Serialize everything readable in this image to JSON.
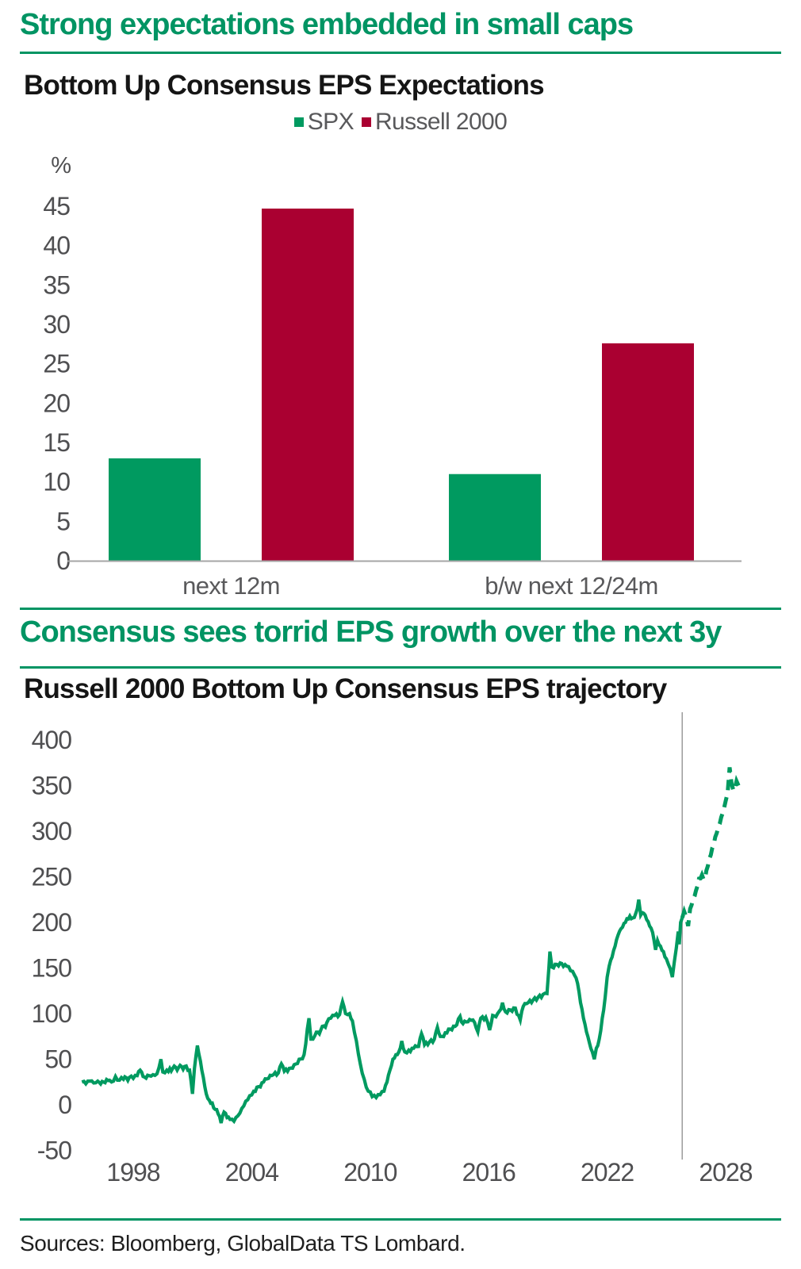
{
  "page": {
    "section1": {
      "headline": "Strong expectations embedded in small caps",
      "chart_title": "Bottom Up Consensus EPS Expectations"
    },
    "section2": {
      "headline": "Consensus sees torrid EPS growth over the next 3y",
      "chart_title": "Russell 2000 Bottom Up Consensus EPS trajectory"
    },
    "footer": {
      "sources": "Sources: Bloomberg, GlobalData TS Lombard."
    }
  },
  "colors": {
    "accent_green": "#009463",
    "series_green": "#009a60",
    "series_crimson": "#aa0031",
    "tick_gray": "#4f4f51",
    "label_gray": "#59595b",
    "axis_gray": "#a6a6a6",
    "vline_gray": "#9b9b9b"
  },
  "chart_data": [
    {
      "type": "bar",
      "title": "Bottom Up Consensus EPS Expectations",
      "unit": "%",
      "categories": [
        "next 12m",
        "b/w next 12/24m"
      ],
      "series": [
        {
          "name": "SPX",
          "color": "#009a60",
          "values": [
            13,
            11
          ]
        },
        {
          "name": "Russell 2000",
          "color": "#aa0031",
          "values": [
            44.7,
            27.6
          ]
        }
      ],
      "ylim": [
        0,
        45
      ],
      "ytick_step": 5,
      "grid": false,
      "legend_position": "top"
    },
    {
      "type": "line",
      "title": "Russell 2000 Bottom Up Consensus EPS trajectory",
      "xlim": [
        1995.3,
        2028.9
      ],
      "ylim": [
        -50,
        400
      ],
      "xticks": [
        1998,
        2004,
        2010,
        2016,
        2022,
        2028
      ],
      "ytick_step": 50,
      "grid": false,
      "annotations": [
        {
          "type": "vline",
          "x": 2025.8,
          "meaning": "forecast-start"
        }
      ],
      "series": [
        {
          "name": "Russell 2000 bottom-up consensus EPS",
          "color": "#009a60",
          "solid_until_x": 2025.8,
          "points": [
            [
              1995.4,
              25
            ],
            [
              1995.6,
              23
            ],
            [
              1995.8,
              26
            ],
            [
              1996.0,
              24
            ],
            [
              1996.2,
              26
            ],
            [
              1996.5,
              25
            ],
            [
              1996.8,
              27
            ],
            [
              1997.0,
              26
            ],
            [
              1997.1,
              31
            ],
            [
              1997.3,
              27
            ],
            [
              1997.5,
              28
            ],
            [
              1997.8,
              30
            ],
            [
              1998.0,
              29
            ],
            [
              1998.2,
              32
            ],
            [
              1998.35,
              38
            ],
            [
              1998.5,
              31
            ],
            [
              1998.8,
              32
            ],
            [
              1999.0,
              33
            ],
            [
              1999.2,
              34
            ],
            [
              1999.4,
              50
            ],
            [
              1999.5,
              36
            ],
            [
              1999.7,
              38
            ],
            [
              2000.0,
              40
            ],
            [
              2000.3,
              41
            ],
            [
              2000.6,
              42
            ],
            [
              2000.85,
              38
            ],
            [
              2001.0,
              12
            ],
            [
              2001.1,
              40
            ],
            [
              2001.25,
              65
            ],
            [
              2001.4,
              48
            ],
            [
              2001.55,
              30
            ],
            [
              2001.7,
              12
            ],
            [
              2001.85,
              5
            ],
            [
              2002.0,
              2
            ],
            [
              2002.15,
              -5
            ],
            [
              2002.3,
              -10
            ],
            [
              2002.45,
              -20
            ],
            [
              2002.6,
              -8
            ],
            [
              2002.75,
              -14
            ],
            [
              2002.9,
              -16
            ],
            [
              2003.1,
              -18
            ],
            [
              2003.3,
              -12
            ],
            [
              2003.5,
              -4
            ],
            [
              2003.7,
              4
            ],
            [
              2003.9,
              10
            ],
            [
              2004.1,
              15
            ],
            [
              2004.35,
              20
            ],
            [
              2004.6,
              25
            ],
            [
              2004.85,
              29
            ],
            [
              2005.1,
              33
            ],
            [
              2005.35,
              35
            ],
            [
              2005.5,
              45
            ],
            [
              2005.65,
              37
            ],
            [
              2005.9,
              40
            ],
            [
              2006.15,
              44
            ],
            [
              2006.4,
              50
            ],
            [
              2006.65,
              55
            ],
            [
              2006.9,
              95
            ],
            [
              2007.0,
              72
            ],
            [
              2007.2,
              76
            ],
            [
              2007.5,
              82
            ],
            [
              2007.8,
              90
            ],
            [
              2008.0,
              95
            ],
            [
              2008.2,
              98
            ],
            [
              2008.45,
              99
            ],
            [
              2008.6,
              113
            ],
            [
              2008.75,
              100
            ],
            [
              2008.95,
              100
            ],
            [
              2009.1,
              92
            ],
            [
              2009.3,
              70
            ],
            [
              2009.5,
              45
            ],
            [
              2009.7,
              28
            ],
            [
              2009.9,
              15
            ],
            [
              2010.1,
              9
            ],
            [
              2010.3,
              8
            ],
            [
              2010.5,
              11
            ],
            [
              2010.7,
              15
            ],
            [
              2010.85,
              25
            ],
            [
              2011.0,
              38
            ],
            [
              2011.15,
              50
            ],
            [
              2011.3,
              55
            ],
            [
              2011.45,
              58
            ],
            [
              2011.6,
              70
            ],
            [
              2011.75,
              58
            ],
            [
              2011.95,
              60
            ],
            [
              2012.2,
              62
            ],
            [
              2012.45,
              64
            ],
            [
              2012.6,
              78
            ],
            [
              2012.75,
              66
            ],
            [
              2013.0,
              69
            ],
            [
              2013.25,
              72
            ],
            [
              2013.4,
              85
            ],
            [
              2013.55,
              75
            ],
            [
              2013.8,
              79
            ],
            [
              2014.05,
              83
            ],
            [
              2014.3,
              86
            ],
            [
              2014.55,
              97
            ],
            [
              2014.7,
              89
            ],
            [
              2014.95,
              91
            ],
            [
              2015.2,
              93
            ],
            [
              2015.45,
              80
            ],
            [
              2015.6,
              95
            ],
            [
              2015.85,
              96
            ],
            [
              2016.05,
              82
            ],
            [
              2016.2,
              98
            ],
            [
              2016.45,
              100
            ],
            [
              2016.7,
              112
            ],
            [
              2016.85,
              102
            ],
            [
              2017.1,
              104
            ],
            [
              2017.35,
              106
            ],
            [
              2017.6,
              93
            ],
            [
              2017.75,
              108
            ],
            [
              2018.0,
              112
            ],
            [
              2018.25,
              115
            ],
            [
              2018.5,
              118
            ],
            [
              2018.75,
              121
            ],
            [
              2018.95,
              122
            ],
            [
              2019.05,
              150
            ],
            [
              2019.1,
              168
            ],
            [
              2019.2,
              151
            ],
            [
              2019.45,
              154
            ],
            [
              2019.7,
              155
            ],
            [
              2019.95,
              152
            ],
            [
              2020.15,
              147
            ],
            [
              2020.35,
              142
            ],
            [
              2020.5,
              133
            ],
            [
              2020.65,
              112
            ],
            [
              2020.8,
              95
            ],
            [
              2020.95,
              80
            ],
            [
              2021.1,
              68
            ],
            [
              2021.25,
              58
            ],
            [
              2021.35,
              50
            ],
            [
              2021.45,
              62
            ],
            [
              2021.6,
              72
            ],
            [
              2021.75,
              95
            ],
            [
              2021.9,
              118
            ],
            [
              2022.0,
              140
            ],
            [
              2022.1,
              152
            ],
            [
              2022.25,
              162
            ],
            [
              2022.4,
              174
            ],
            [
              2022.55,
              186
            ],
            [
              2022.7,
              193
            ],
            [
              2022.85,
              199
            ],
            [
              2023.0,
              204
            ],
            [
              2023.15,
              207
            ],
            [
              2023.3,
              205
            ],
            [
              2023.45,
              210
            ],
            [
              2023.6,
              225
            ],
            [
              2023.7,
              208
            ],
            [
              2023.85,
              210
            ],
            [
              2024.0,
              203
            ],
            [
              2024.15,
              196
            ],
            [
              2024.3,
              189
            ],
            [
              2024.45,
              170
            ],
            [
              2024.55,
              180
            ],
            [
              2024.7,
              174
            ],
            [
              2024.85,
              168
            ],
            [
              2025.0,
              160
            ],
            [
              2025.1,
              154
            ],
            [
              2025.2,
              149
            ],
            [
              2025.3,
              140
            ],
            [
              2025.4,
              157
            ],
            [
              2025.5,
              172
            ],
            [
              2025.6,
              190
            ],
            [
              2025.65,
              176
            ],
            [
              2025.72,
              200
            ],
            [
              2025.8,
              205
            ],
            [
              2025.9,
              212
            ],
            [
              2026.0,
              206
            ],
            [
              2026.1,
              196
            ],
            [
              2026.2,
              215
            ],
            [
              2026.35,
              225
            ],
            [
              2026.5,
              235
            ],
            [
              2026.65,
              248
            ],
            [
              2026.8,
              252
            ],
            [
              2026.95,
              247
            ],
            [
              2027.1,
              262
            ],
            [
              2027.25,
              274
            ],
            [
              2027.4,
              286
            ],
            [
              2027.55,
              298
            ],
            [
              2027.7,
              308
            ],
            [
              2027.85,
              320
            ],
            [
              2028.0,
              333
            ],
            [
              2028.1,
              342
            ],
            [
              2028.2,
              370
            ],
            [
              2028.3,
              352
            ],
            [
              2028.4,
              344
            ],
            [
              2028.55,
              355
            ],
            [
              2028.65,
              350
            ]
          ]
        }
      ]
    }
  ]
}
